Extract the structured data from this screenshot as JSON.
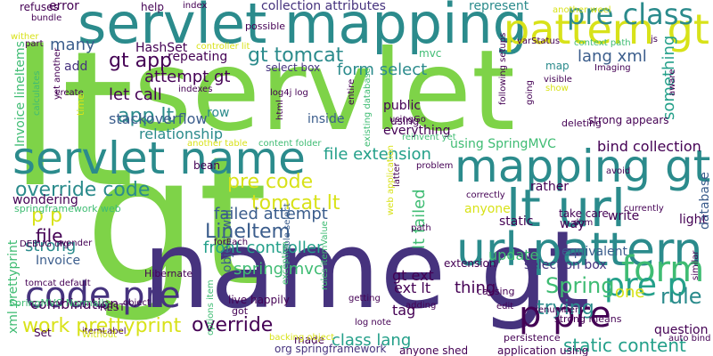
{
  "palette": {
    "green": "#7ed348",
    "lime": "#a6db36",
    "teal": "#2b8b8c",
    "blue": "#3b5d8c",
    "indigo": "#46337e",
    "purple": "#440154",
    "cyan": "#24a08a",
    "seafoam": "#3fbc73",
    "yellow": "#d8e219"
  },
  "words": [
    {
      "text": "servlet",
      "color": "#7ed348"
    },
    {
      "text": "gt",
      "color": "#7ed348"
    },
    {
      "text": "lt",
      "color": "#7ed348"
    },
    {
      "text": "name gt",
      "color": "#46337e"
    },
    {
      "text": "servlet mapping",
      "color": "#2b8b8c"
    },
    {
      "text": "servlet name",
      "color": "#2b8b8c"
    },
    {
      "text": "mapping gt",
      "color": "#2b8b8c"
    },
    {
      "text": "lt url",
      "color": "#2b8b8c"
    },
    {
      "text": "url pattern",
      "color": "#2b8b8c"
    },
    {
      "text": "pattern gt",
      "color": "#d8e219"
    },
    {
      "text": "pre class",
      "color": "#2b8b8c"
    },
    {
      "text": "form",
      "color": "#3fbc73"
    },
    {
      "text": "pre p",
      "color": "#24a08a"
    },
    {
      "text": "code pre",
      "color": "#46337e"
    },
    {
      "text": "p pre",
      "color": "#440154"
    },
    {
      "text": "gt tomcat",
      "color": "#2b8b8c"
    },
    {
      "text": "gt app",
      "color": "#440154"
    },
    {
      "text": "app lt",
      "color": "#2b8b8c"
    },
    {
      "text": "LineItem",
      "color": "#3b5d8c"
    },
    {
      "text": "pre code",
      "color": "#d8e219"
    },
    {
      "text": "tomcat lt",
      "color": "#d8e219"
    },
    {
      "text": "failed attempt",
      "color": "#3b5d8c"
    },
    {
      "text": "front controller",
      "color": "#24a08a"
    },
    {
      "text": "spring mvc",
      "color": "#3fbc73"
    },
    {
      "text": "override code",
      "color": "#2b8b8c"
    },
    {
      "text": "work prettyprint",
      "color": "#d8e219"
    },
    {
      "text": "override",
      "color": "#440154"
    },
    {
      "text": "Spring",
      "color": "#3fbc73"
    },
    {
      "text": "trying",
      "color": "#2b8b8c"
    },
    {
      "text": "rule",
      "color": "#2b8b8c"
    },
    {
      "text": "static content",
      "color": "#24a08a"
    },
    {
      "text": "class lang",
      "color": "#24a08a"
    },
    {
      "text": "file extension",
      "color": "#24a08a"
    },
    {
      "text": "form select",
      "color": "#2b8b8c"
    },
    {
      "text": "lang xml",
      "color": "#3b5d8c"
    },
    {
      "text": "attempt gt",
      "color": "#440154"
    },
    {
      "text": "let call",
      "color": "#440154"
    },
    {
      "text": "stackoverflow",
      "color": "#3b5d8c"
    },
    {
      "text": "relationship",
      "color": "#2b8b8c"
    },
    {
      "text": "many",
      "color": "#3b5d8c"
    },
    {
      "text": "add",
      "color": "#46337e"
    },
    {
      "text": "p p",
      "color": "#d8e219"
    },
    {
      "text": "file",
      "color": "#440154"
    },
    {
      "text": "strong",
      "color": "#2b8b8c"
    },
    {
      "text": "Invoice",
      "color": "#3b5d8c"
    },
    {
      "text": "combination",
      "color": "#440154"
    },
    {
      "text": "wondering",
      "color": "#440154"
    },
    {
      "text": "REST",
      "color": "#440154"
    },
    {
      "text": "xml prettyprint",
      "color": "#3fbc73"
    },
    {
      "text": "gt ext",
      "color": "#440154"
    },
    {
      "text": "ext lt",
      "color": "#440154"
    },
    {
      "text": "tag",
      "color": "#440154"
    },
    {
      "text": "one",
      "color": "#d8e219"
    },
    {
      "text": "update",
      "color": "#3fbc73"
    },
    {
      "text": "equivalent",
      "color": "#3b5d8c"
    },
    {
      "text": "selection box",
      "color": "#46337e"
    },
    {
      "text": "bind collection",
      "color": "#440154"
    },
    {
      "text": "using SpringMVC",
      "color": "#3fbc73"
    },
    {
      "text": "select box",
      "color": "#46337e"
    },
    {
      "text": "collection attributes",
      "color": "#46337e"
    },
    {
      "text": "represent",
      "color": "#2b8b8c"
    },
    {
      "text": "mvc",
      "color": "#3fbc73"
    },
    {
      "text": "HashSet",
      "color": "#440154"
    },
    {
      "text": "repeating",
      "color": "#440154"
    },
    {
      "text": "row",
      "color": "#2b8b8c"
    },
    {
      "text": "inside",
      "color": "#3b5d8c"
    },
    {
      "text": "public",
      "color": "#440154"
    },
    {
      "text": "using",
      "color": "#440154"
    },
    {
      "text": "everything",
      "color": "#440154"
    },
    {
      "text": "something",
      "color": "#24a08a"
    },
    {
      "text": "map",
      "color": "#2b8b8c"
    },
    {
      "text": "strong appears",
      "color": "#440154"
    },
    {
      "text": "deleting",
      "color": "#440154"
    },
    {
      "text": "rather",
      "color": "#440154"
    },
    {
      "text": "take care",
      "color": "#440154"
    },
    {
      "text": "write",
      "color": "#440154"
    },
    {
      "text": "light",
      "color": "#440154"
    },
    {
      "text": "way",
      "color": "#440154"
    },
    {
      "text": "database",
      "color": "#3b5d8c"
    },
    {
      "text": "static",
      "color": "#440154"
    },
    {
      "text": "anyone",
      "color": "#d8e219"
    },
    {
      "text": "extension",
      "color": "#440154"
    },
    {
      "text": "thing",
      "color": "#440154"
    },
    {
      "text": "question",
      "color": "#440154"
    },
    {
      "text": "strong means",
      "color": "#440154"
    },
    {
      "text": "persistence",
      "color": "#440154"
    },
    {
      "text": "application using",
      "color": "#440154"
    },
    {
      "text": "org springframework",
      "color": "#46337e"
    },
    {
      "text": "made",
      "color": "#440154"
    },
    {
      "text": "anyone shed",
      "color": "#440154"
    },
    {
      "text": "log note",
      "color": "#440154"
    },
    {
      "text": "live happily",
      "color": "#440154"
    },
    {
      "text": "got",
      "color": "#440154"
    },
    {
      "text": "object will",
      "color": "#3b5d8c"
    },
    {
      "text": "lt failed",
      "color": "#3fbc73"
    },
    {
      "text": "bean",
      "color": "#440154"
    },
    {
      "text": "Hibernate",
      "color": "#440154"
    },
    {
      "text": "tomcat default",
      "color": "#440154"
    },
    {
      "text": "Set",
      "color": "#440154"
    },
    {
      "text": "SpringMVC Normally",
      "color": "#3fbc73"
    },
    {
      "text": "DEBUG org",
      "color": "#440154"
    },
    {
      "text": "springframework web",
      "color": "#3fbc73"
    },
    {
      "text": "Invoice lineItems",
      "color": "#3fbc73"
    },
    {
      "text": "refuses",
      "color": "#440154"
    },
    {
      "text": "error",
      "color": "#440154"
    },
    {
      "text": "bundle",
      "color": "#440154"
    },
    {
      "text": "help",
      "color": "#440154"
    },
    {
      "text": "index",
      "color": "#440154"
    },
    {
      "text": "itemLabel",
      "color": "#440154"
    },
    {
      "text": "possible",
      "color": "#440154"
    },
    {
      "text": "controller lit",
      "color": "#d8e219"
    },
    {
      "text": "varStatus",
      "color": "#440154"
    },
    {
      "text": "context path",
      "color": "#3fbc73"
    },
    {
      "text": "js",
      "color": "#440154"
    },
    {
      "text": "Imaging",
      "color": "#440154"
    },
    {
      "text": "visible",
      "color": "#440154"
    },
    {
      "text": "show",
      "color": "#d8e219"
    },
    {
      "text": "another weel",
      "color": "#d8e219"
    },
    {
      "text": "log4j log",
      "color": "#440154"
    },
    {
      "text": "indexes",
      "color": "#440154"
    },
    {
      "text": "create",
      "color": "#440154"
    },
    {
      "text": "yet another",
      "color": "#440154"
    },
    {
      "text": "calculates",
      "color": "#3fbc73"
    },
    {
      "text": "wither",
      "color": "#d8e219"
    },
    {
      "text": "part",
      "color": "#440154"
    },
    {
      "text": "time",
      "color": "#d8e219"
    },
    {
      "text": "html",
      "color": "#440154"
    },
    {
      "text": "content folder",
      "color": "#3fbc73"
    },
    {
      "text": "another table",
      "color": "#d8e219"
    },
    {
      "text": "reinvent yet",
      "color": "#3fbc73"
    },
    {
      "text": "problem",
      "color": "#440154"
    },
    {
      "text": "correctly",
      "color": "#440154"
    },
    {
      "text": "currently",
      "color": "#440154"
    },
    {
      "text": "avoid",
      "color": "#440154"
    },
    {
      "text": "dom",
      "color": "#440154"
    },
    {
      "text": "path",
      "color": "#440154"
    },
    {
      "text": "latter",
      "color": "#440154"
    },
    {
      "text": "web application",
      "color": "#d8e219"
    },
    {
      "text": "multiple select",
      "color": "#3b5d8c"
    },
    {
      "text": "forEach",
      "color": "#440154"
    },
    {
      "text": "wonder",
      "color": "#440154"
    },
    {
      "text": "object",
      "color": "#440154"
    },
    {
      "text": "getting",
      "color": "#440154"
    },
    {
      "text": "adding",
      "color": "#440154"
    },
    {
      "text": "causing",
      "color": "#440154"
    },
    {
      "text": "renumber",
      "color": "#440154"
    },
    {
      "text": "edit",
      "color": "#440154"
    },
    {
      "text": "auto bind",
      "color": "#440154"
    },
    {
      "text": "similar",
      "color": "#440154"
    },
    {
      "text": "exception",
      "color": "#3fbc73"
    },
    {
      "text": "rules itemValue",
      "color": "#3fbc73"
    },
    {
      "text": "backing object",
      "color": "#d8e219"
    },
    {
      "text": "options item",
      "color": "#3fbc73"
    },
    {
      "text": "Without",
      "color": "#d8e219"
    },
    {
      "text": "aware",
      "color": "#440154"
    },
    {
      "text": "going",
      "color": "#440154"
    },
    {
      "text": "entire",
      "color": "#440154"
    },
    {
      "text": "following setups",
      "color": "#440154"
    },
    {
      "text": "usingGo",
      "color": "#440154"
    },
    {
      "text": "existing database",
      "color": "#3fbc73"
    }
  ]
}
